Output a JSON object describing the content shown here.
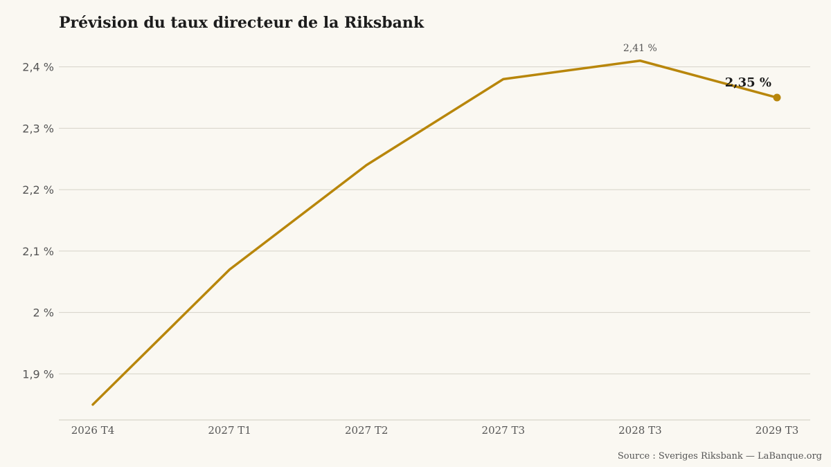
{
  "chart_data": {
    "type": "line",
    "title": "Prévision du taux directeur de la Riksbank",
    "categories": [
      "2026 T4",
      "2027 T1",
      "2027 T2",
      "2027 T3",
      "2028 T3",
      "2029 T3"
    ],
    "series": [
      {
        "values": [
          1.85,
          2.07,
          2.24,
          2.38,
          2.41,
          2.35
        ],
        "color": "#b8860b"
      }
    ],
    "yticks": [
      1.9,
      2.0,
      2.1,
      2.2,
      2.3,
      2.4
    ],
    "ytick_labels": [
      "1,9 %",
      "2 %",
      "2,1 %",
      "2,2 %",
      "2,3 %",
      "2,4 %"
    ],
    "ylim": [
      1.825,
      2.43
    ],
    "grid": true,
    "annotations": [
      {
        "category": "2028 T3",
        "value": 2.41,
        "text": "2,41 %",
        "style": "peak"
      },
      {
        "category": "2029 T3",
        "value": 2.35,
        "text": "2,35 %",
        "style": "last"
      }
    ],
    "source": "Source : Sveriges Riksbank — LaBanque.org"
  }
}
